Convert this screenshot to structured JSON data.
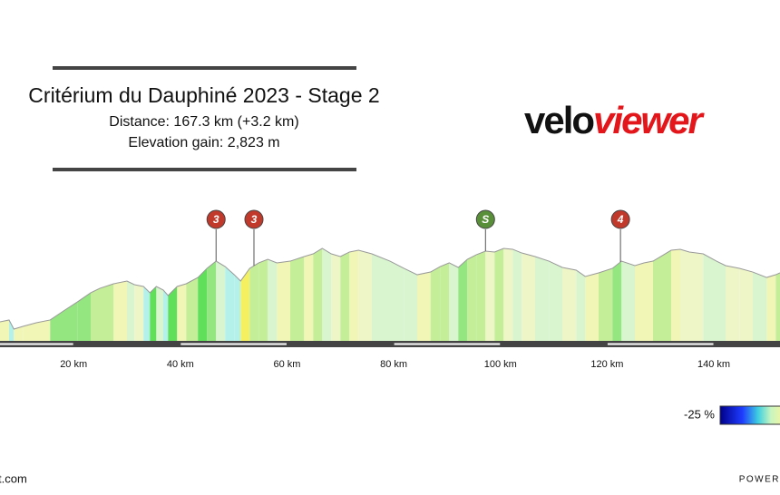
{
  "header": {
    "title": "Critérium du Dauphiné 2023 - Stage 2",
    "distance": "Distance: 167.3 km (+3.2 km)",
    "elevation_gain": "Elevation gain: 2,823 m"
  },
  "logo": {
    "part1": "velo",
    "part2": "viewer"
  },
  "legend": {
    "label": "-25 %"
  },
  "footer": {
    "left": "t.com",
    "right": "POWER"
  },
  "chart_data": {
    "type": "area",
    "x": [
      6.2,
      7.9,
      8.8,
      10.5,
      13.0,
      15.6,
      18.1,
      20.7,
      23.2,
      24.9,
      27.5,
      30.0,
      31.4,
      33.1,
      34.3,
      35.5,
      36.8,
      37.7,
      39.4,
      41.1,
      43.3,
      45.0,
      46.7,
      48.4,
      50.1,
      51.3,
      53.0,
      54.7,
      56.4,
      58.1,
      60.6,
      63.2,
      64.9,
      66.6,
      68.3,
      70.0,
      71.7,
      73.4,
      75.9,
      79.3,
      81.9,
      84.4,
      86.9,
      88.7,
      90.4,
      92.1,
      93.8,
      95.5,
      97.2,
      98.9,
      100.6,
      102.3,
      104.0,
      106.5,
      109.1,
      111.6,
      114.2,
      115.9,
      118.4,
      121.0,
      122.7,
      125.2,
      126.9,
      128.6,
      130.3,
      132.0,
      133.7,
      135.4,
      138.0,
      140.5,
      142.2,
      144.8,
      147.3,
      149.9,
      151.6,
      152.4
    ],
    "values": [
      175,
      192,
      108,
      133,
      167,
      192,
      275,
      358,
      442,
      483,
      525,
      550,
      517,
      500,
      442,
      500,
      467,
      417,
      500,
      525,
      583,
      667,
      733,
      683,
      608,
      550,
      667,
      717,
      750,
      717,
      733,
      775,
      800,
      850,
      800,
      775,
      817,
      833,
      800,
      733,
      667,
      608,
      633,
      683,
      717,
      675,
      750,
      792,
      825,
      817,
      850,
      842,
      808,
      775,
      733,
      675,
      650,
      592,
      625,
      667,
      733,
      692,
      717,
      733,
      783,
      833,
      842,
      817,
      800,
      733,
      692,
      667,
      633,
      583,
      608,
      625
    ],
    "xlim": [
      6.2,
      152.4
    ],
    "ylim": [
      0,
      1100
    ],
    "xticks": [
      {
        "value": 20,
        "label": "20 km"
      },
      {
        "value": 40,
        "label": "40 km"
      },
      {
        "value": 60,
        "label": "60 km"
      },
      {
        "value": 80,
        "label": "80 km"
      },
      {
        "value": 100,
        "label": "100 km"
      },
      {
        "value": 120,
        "label": "120 km"
      },
      {
        "value": 140,
        "label": "140 km"
      }
    ],
    "climbs": [
      {
        "label": "3",
        "x": 46.7,
        "color": "#c0392b"
      },
      {
        "label": "3",
        "x": 53.8,
        "color": "#c0392b"
      },
      {
        "label": "S",
        "x": 97.2,
        "color": "#5a8f3a"
      },
      {
        "label": "4",
        "x": 122.5,
        "color": "#c0392b"
      }
    ]
  }
}
